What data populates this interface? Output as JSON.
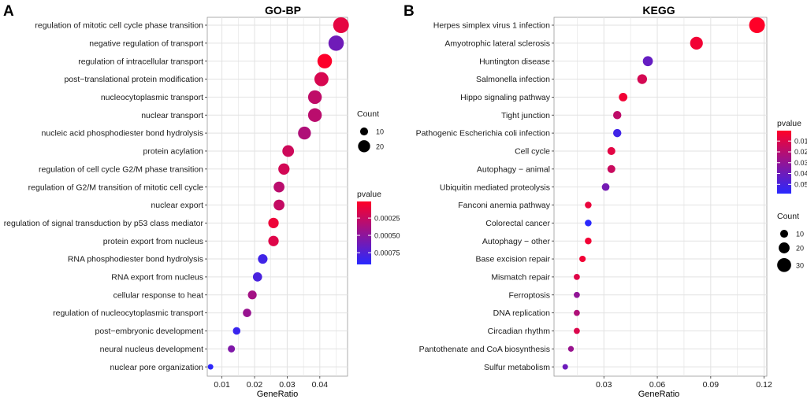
{
  "chart_data": [
    {
      "type": "scatter",
      "panel_label": "A",
      "title": "GO-BP",
      "xlabel": "GeneRatio",
      "ylabel": "",
      "xlim": [
        0.0055,
        0.0485
      ],
      "xticks": [
        0.01,
        0.02,
        0.03,
        0.04
      ],
      "xtick_labels": [
        "0.01",
        "0.02",
        "0.03",
        "0.04"
      ],
      "grid": true,
      "categories": [
        "regulation of mitotic cell cycle phase transition",
        "negative regulation of transport",
        "regulation of intracellular transport",
        "post−translational protein modification",
        "nucleocytoplasmic transport",
        "nuclear transport",
        "nucleic acid phosphodiester bond hydrolysis",
        "protein acylation",
        "regulation of cell cycle G2/M phase transition",
        "regulation of G2/M transition of mitotic cell cycle",
        "nuclear export",
        "regulation of signal transduction by p53 class mediator",
        "protein export from nucleus",
        "RNA phosphodiester bond hydrolysis",
        "RNA export from nucleus",
        "cellular response to heat",
        "regulation of nucleocytoplasmic transport",
        "post−embryonic development",
        "neural nucleus development",
        "nuclear pore organization"
      ],
      "x": [
        0.0465,
        0.045,
        0.0415,
        0.0405,
        0.0385,
        0.0385,
        0.0353,
        0.0303,
        0.029,
        0.0275,
        0.0275,
        0.0258,
        0.0258,
        0.0225,
        0.0209,
        0.0193,
        0.0177,
        0.0145,
        0.0129,
        0.0065
      ],
      "count": [
        29,
        28,
        26,
        25,
        24,
        24,
        22,
        19,
        18,
        17,
        17,
        16,
        16,
        14,
        13,
        12,
        11,
        9,
        8,
        4
      ],
      "pvalue": [
        0.00012,
        0.00062,
        2e-05,
        0.00018,
        0.00028,
        0.0003,
        0.00035,
        0.00022,
        0.0002,
        0.0003,
        0.00026,
        8e-05,
        0.00015,
        0.00082,
        0.00078,
        0.0004,
        0.00045,
        0.00085,
        0.00055,
        0.0009
      ],
      "legends": {
        "size": {
          "title": "Count",
          "labels": [
            "10",
            "20"
          ],
          "values": [
            10,
            20
          ]
        },
        "color": {
          "title": "pvalue",
          "labels": [
            "0.00025",
            "0.00050",
            "0.00075"
          ],
          "values": [
            0.00025,
            0.0005,
            0.00075
          ],
          "range": [
            1e-05,
            0.00092
          ],
          "legend_order": [
            "color-bar",
            "size"
          ]
        }
      },
      "legend_placement": "right",
      "size_range": [
        4,
        29
      ]
    },
    {
      "type": "scatter",
      "panel_label": "B",
      "title": "KEGG",
      "xlabel": "GeneRatio",
      "ylabel": "",
      "xlim": [
        0.002,
        0.1215
      ],
      "xticks": [
        0.03,
        0.06,
        0.09,
        0.12
      ],
      "xtick_labels": [
        "0.03",
        "0.06",
        "0.09",
        "0.12"
      ],
      "grid": true,
      "categories": [
        "Herpes simplex virus 1 infection",
        "Amyotrophic lateral sclerosis",
        "Huntington disease",
        "Salmonella infection",
        "Hippo signaling pathway",
        "Tight junction",
        "Pathogenic Escherichia coli infection",
        "Cell cycle",
        "Autophagy − animal",
        "Ubiquitin mediated proteolysis",
        "Fanconi anemia pathway",
        "Colorectal cancer",
        "Autophagy − other",
        "Base excision repair",
        "Mismatch repair",
        "Ferroptosis",
        "DNA replication",
        "Circadian rhythm",
        "Pantothenate and CoA biosynthesis",
        "Sulfur metabolism"
      ],
      "x": [
        0.116,
        0.082,
        0.0547,
        0.0515,
        0.0408,
        0.0375,
        0.0375,
        0.0342,
        0.0342,
        0.031,
        0.0212,
        0.0212,
        0.0212,
        0.018,
        0.0148,
        0.0148,
        0.0148,
        0.0148,
        0.0115,
        0.0083
      ],
      "count": [
        36,
        26,
        17,
        16,
        12,
        11,
        11,
        10,
        10,
        9,
        6,
        6,
        6,
        5,
        4,
        4,
        4,
        4,
        3,
        2
      ],
      "pvalue": [
        0.0005,
        0.004,
        0.042,
        0.012,
        0.004,
        0.018,
        0.052,
        0.008,
        0.015,
        0.038,
        0.006,
        0.058,
        0.004,
        0.004,
        0.009,
        0.03,
        0.022,
        0.01,
        0.028,
        0.04
      ],
      "legends": {
        "color": {
          "title": "pvalue",
          "labels": [
            "0.01",
            "0.02",
            "0.03",
            "0.04",
            "0.05"
          ],
          "values": [
            0.01,
            0.02,
            0.03,
            0.04,
            0.05
          ],
          "range": [
            0.0004,
            0.0585
          ],
          "legend_order": [
            "color-bar",
            "size"
          ]
        },
        "size": {
          "title": "Count",
          "labels": [
            "10",
            "20",
            "30"
          ],
          "values": [
            10,
            20,
            30
          ]
        }
      },
      "legend_placement": "right",
      "size_range": [
        2,
        36
      ]
    }
  ]
}
